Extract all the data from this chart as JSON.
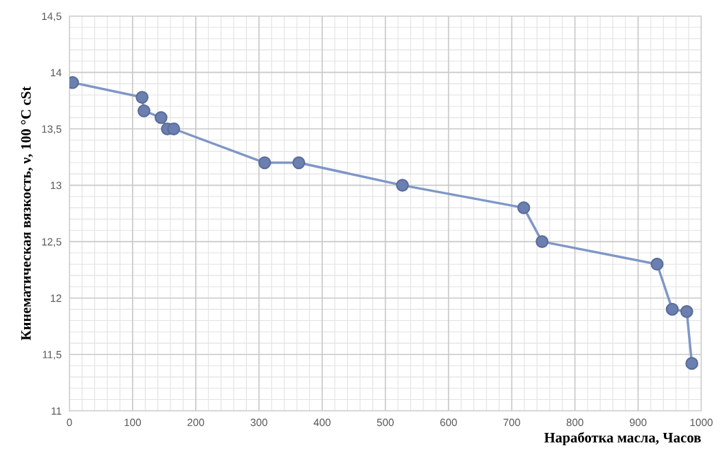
{
  "chart_data": {
    "type": "line",
    "xlabel": "Наработка масла, Часов",
    "ylabel": "Кинематическая вязкость, ν, 100 °C cSt",
    "x": [
      5,
      115,
      118,
      145,
      155,
      165,
      309,
      363,
      527,
      719,
      748,
      930,
      954,
      977,
      985
    ],
    "series": [
      {
        "color": "#7f97c6",
        "values": [
          13.91,
          13.78,
          13.66,
          13.6,
          13.5,
          13.5,
          13.2,
          13.2,
          13.0,
          12.8,
          12.5,
          12.3,
          11.9,
          11.88,
          11.42
        ]
      }
    ],
    "xlim": [
      0,
      1000
    ],
    "xticks": [
      0,
      100,
      200,
      300,
      400,
      500,
      600,
      700,
      800,
      900,
      1000
    ],
    "ylim": [
      11,
      14.5
    ],
    "yticks": [
      11,
      {
        "value": 11.5,
        "label": "11,5"
      },
      12,
      {
        "value": 12.5,
        "label": "12,5"
      },
      13,
      {
        "value": 13.5,
        "label": "13,5"
      },
      14,
      {
        "value": 14.5,
        "label": "14,5"
      }
    ],
    "grid": true,
    "marker": "circle",
    "line_style": "solid"
  }
}
